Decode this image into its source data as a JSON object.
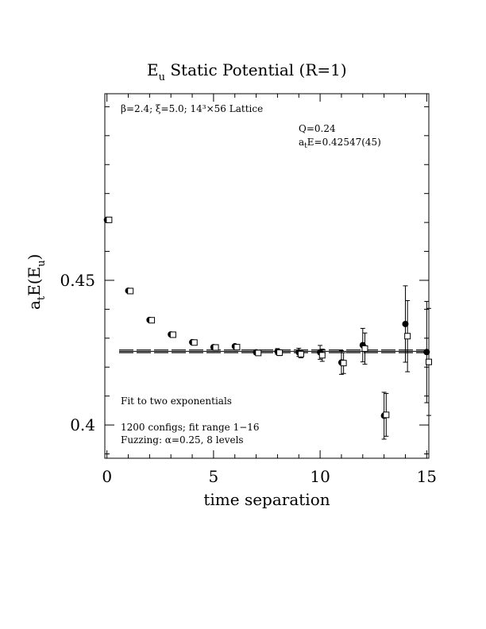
{
  "chart_data": {
    "type": "scatter",
    "title_main": "E",
    "title_sub": "u",
    "title_rest": " Static Potential (R=1)",
    "xlabel": "time separation",
    "ylabel_a": "a",
    "ylabel_t": "t",
    "ylabel_E": "E(E",
    "ylabel_u": "u",
    "ylabel_close": ")",
    "xlim": [
      -0.1,
      15.1
    ],
    "ylim": [
      0.3885,
      0.5145
    ],
    "x_ticks": [
      0,
      5,
      10,
      15
    ],
    "x_tick_labels": [
      "0",
      "5",
      "10",
      "15"
    ],
    "y_ticks": [
      0.4,
      0.45
    ],
    "y_tick_labels": [
      "0.4",
      "0.45"
    ],
    "annotations": {
      "lattice": "β=2.4; ξ=5.0; 14³×56 Lattice",
      "q": "Q=0.24",
      "fit_prefix": "a",
      "fit_sub": "t",
      "fit_value": "E=0.42547(45)",
      "fit_method": "Fit to two exponentials",
      "configs": "1200 configs; fit range 1−16",
      "fuzzing": "Fuzzing: α=0.25, 8 levels"
    },
    "fit": {
      "value": 0.42547,
      "error": 0.00045
    },
    "series": [
      {
        "marker": "filled-circle",
        "x": [
          0,
          1,
          2,
          3,
          4,
          5,
          6,
          7,
          8,
          9,
          10,
          11,
          12,
          13,
          14,
          15
        ],
        "y": [
          0.4709,
          0.4464,
          0.4363,
          0.4313,
          0.4286,
          0.4269,
          0.4272,
          0.4251,
          0.4254,
          0.4251,
          0.4251,
          0.4216,
          0.4276,
          0.4032,
          0.4349,
          0.4252
        ],
        "err": [
          0.0003,
          0.0004,
          0.0005,
          0.0006,
          0.0006,
          0.0007,
          0.0007,
          0.0008,
          0.001,
          0.0014,
          0.0024,
          0.0041,
          0.0058,
          0.0081,
          0.0132,
          0.0175
        ]
      },
      {
        "marker": "open-square",
        "x": [
          0.1,
          1.1,
          2.1,
          3.1,
          4.1,
          5.1,
          6.1,
          7.1,
          8.1,
          9.1,
          10.1,
          11.1,
          12.1,
          13.1,
          14.1,
          15.1
        ],
        "y": [
          0.4709,
          0.4463,
          0.4362,
          0.4312,
          0.4285,
          0.4268,
          0.4269,
          0.4249,
          0.425,
          0.4245,
          0.4241,
          0.4214,
          0.4264,
          0.4035,
          0.4307,
          0.4218
        ],
        "err": [
          0.0003,
          0.0004,
          0.0005,
          0.0006,
          0.0006,
          0.0007,
          0.0007,
          0.0008,
          0.001,
          0.0013,
          0.0021,
          0.0036,
          0.0054,
          0.0074,
          0.0123,
          0.0185
        ]
      }
    ]
  }
}
